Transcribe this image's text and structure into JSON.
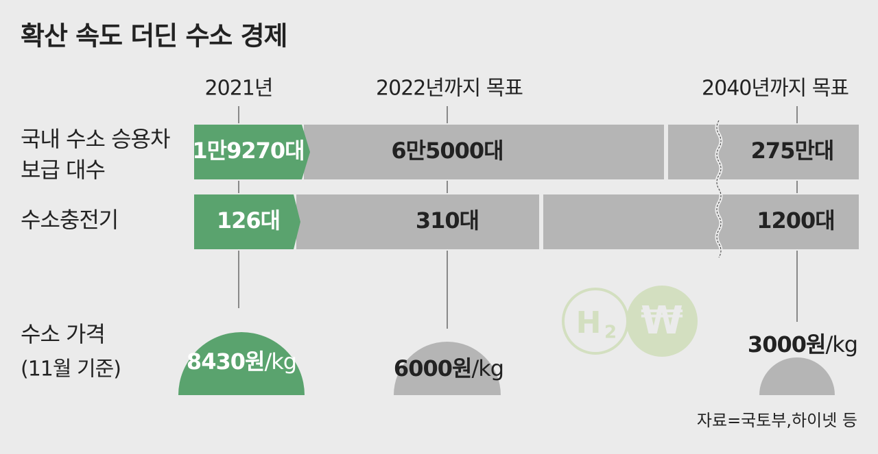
{
  "title": "확산 속도 더딘 수소 경제",
  "columns": [
    "2021년",
    "2022년까지 목표",
    "2040년까지 목표"
  ],
  "rows": [
    {
      "label": [
        "국내 수소 승용차",
        "보급 대수"
      ],
      "cells": [
        "1만9270대",
        "6만5000대",
        "275만대"
      ]
    },
    {
      "label": [
        "수소충전기"
      ],
      "cells": [
        "126대",
        "310대",
        "1200대"
      ]
    }
  ],
  "price": {
    "label": [
      "수소 가격",
      "(11월 기준)"
    ],
    "cells": [
      {
        "amount": "8430원",
        "unit": "/kg"
      },
      {
        "amount": "6000원",
        "unit": "/kg"
      },
      {
        "amount": "3000원",
        "unit": "/kg"
      }
    ]
  },
  "icons": [
    "H",
    "2",
    "₩"
  ],
  "source": "자료=국토부,하이넷 등"
}
